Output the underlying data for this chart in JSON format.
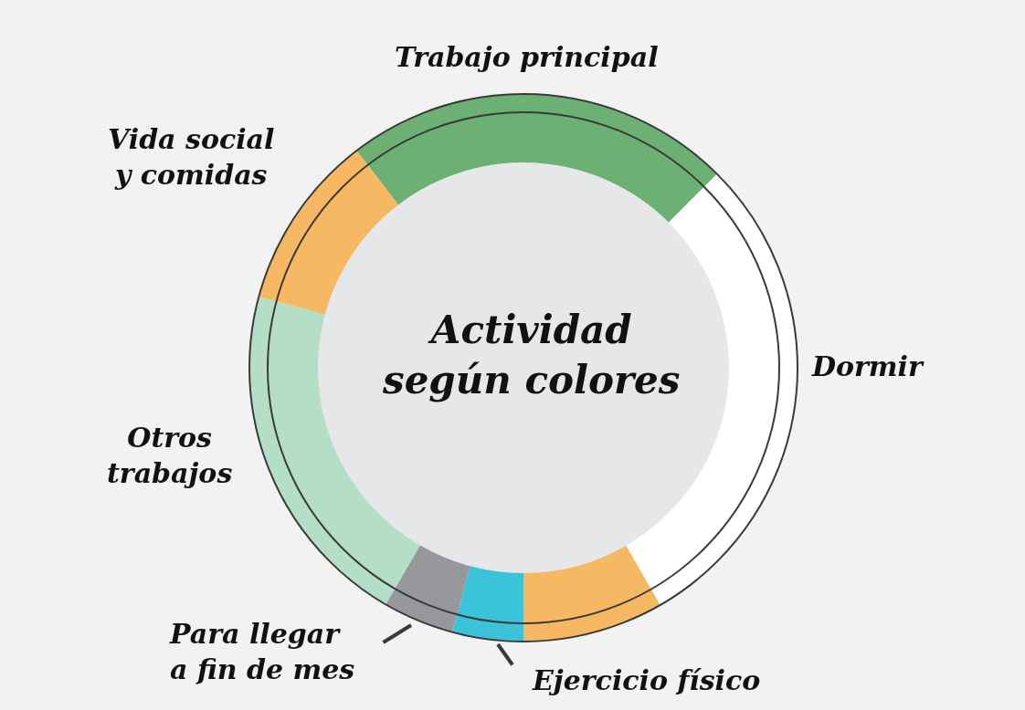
{
  "chart_data": {
    "type": "donut",
    "title": "Actividad\nsegún colores",
    "categories": [
      "Trabajo principal",
      "Dormir",
      null,
      "Ejercicio físico",
      "Para llegar\na fin de mes",
      "Otros\ntrabajos",
      "Vida social\ny comidas"
    ],
    "values": [
      22.9,
      29.2,
      8.3,
      4.2,
      4.2,
      20.8,
      10.4
    ],
    "colors": [
      "#6db074",
      "#ffffff",
      "#f7b863",
      "#3bc4d9",
      "#97989c",
      "#b5dec6",
      "#f7b863"
    ],
    "legend": false
  }
}
